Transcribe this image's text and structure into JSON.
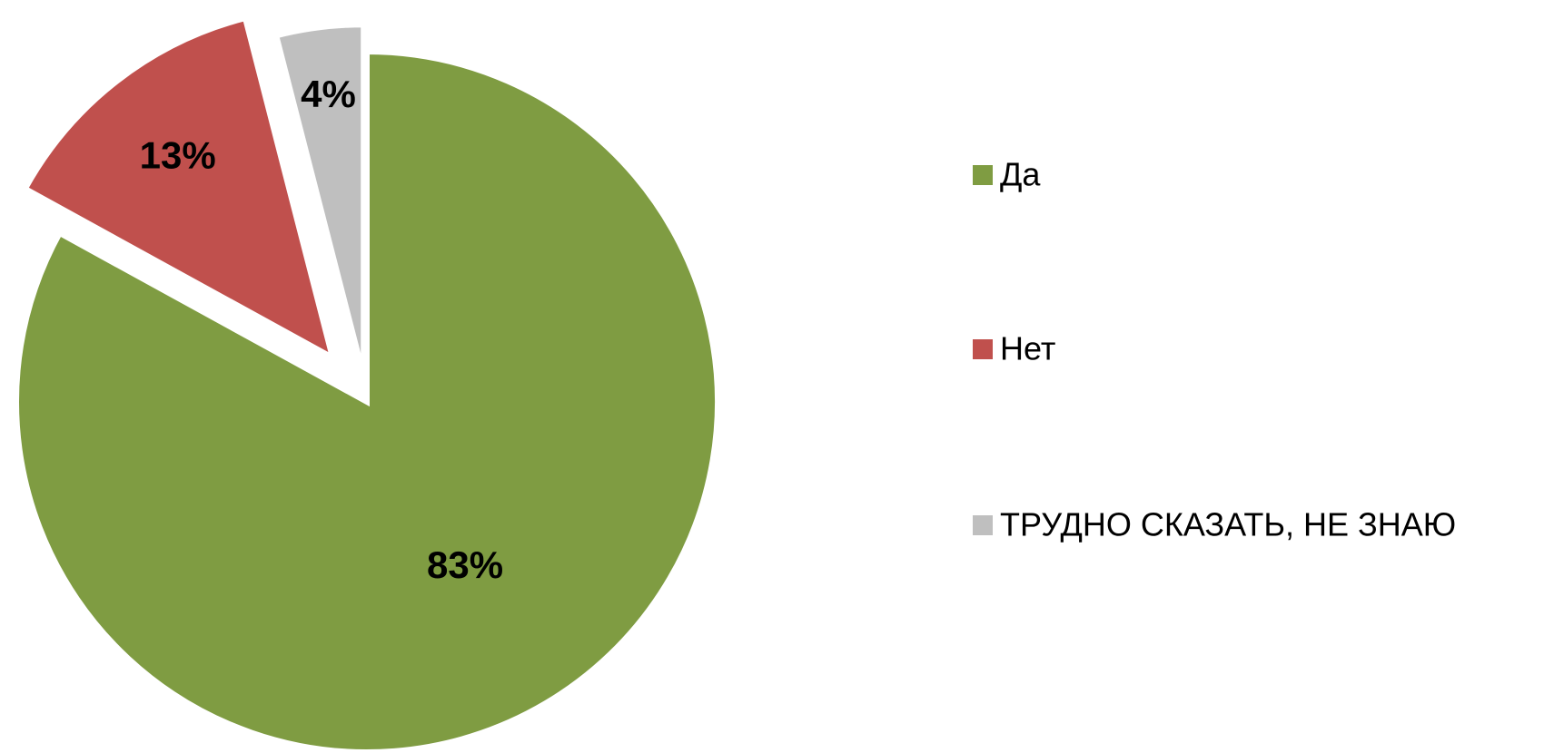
{
  "chart_data": {
    "type": "pie",
    "categories": [
      "Да",
      "Нет",
      "ТРУДНО СКАЗАТЬ, НЕ ЗНАЮ"
    ],
    "values": [
      83,
      13,
      4
    ],
    "value_labels": [
      "83%",
      "13%",
      "4%"
    ],
    "colors": [
      "#7f9c42",
      "#c0504d",
      "#bfbfbf"
    ],
    "legend": "right"
  }
}
